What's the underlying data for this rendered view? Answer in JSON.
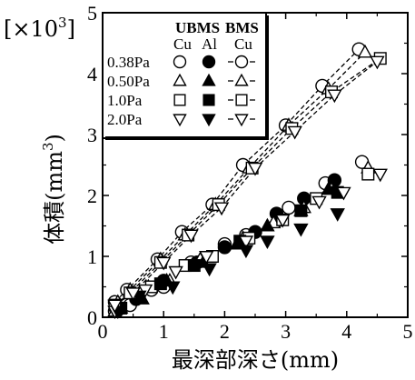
{
  "chart_data": {
    "type": "scatter",
    "multiplier": "[×10",
    "multiplier_exp": "3",
    "multiplier_close": "]",
    "xlabel": "最深部深さ(mm)",
    "ylabel": "体積(mm",
    "ylabel_exp": "3",
    "ylabel_close": ")",
    "xlim": [
      0,
      5
    ],
    "ylim": [
      0,
      5
    ],
    "xticks": [
      "0",
      "1",
      "2",
      "3",
      "4",
      "5"
    ],
    "yticks": [
      "0",
      "1",
      "2",
      "3",
      "4",
      "5"
    ],
    "grid": false,
    "legend_position": "top-left",
    "legend": {
      "header_group": "UBMS",
      "header_group2": "BMS",
      "sub_cu": "Cu",
      "sub_al": "Al",
      "sub_cu2": "Cu",
      "rows": [
        {
          "pressure": "0.38Pa",
          "marker": "circle"
        },
        {
          "pressure": "0.50Pa",
          "marker": "triangle-up"
        },
        {
          "pressure": "1.0Pa",
          "marker": "square"
        },
        {
          "pressure": "2.0Pa",
          "marker": "triangle-down"
        }
      ]
    },
    "series": [
      {
        "name": "0.38Pa UBMS Cu",
        "marker": "circle",
        "fill": "open",
        "line": false,
        "x": [
          0.2,
          0.45,
          0.8,
          1.0,
          1.45,
          2.0,
          2.35,
          2.9,
          3.05,
          3.65,
          4.25
        ],
        "y": [
          0.1,
          0.2,
          0.45,
          0.5,
          0.9,
          1.2,
          1.35,
          1.6,
          1.8,
          2.2,
          2.55
        ]
      },
      {
        "name": "0.38Pa UBMS Al",
        "marker": "circle",
        "fill": "filled",
        "line": false,
        "x": [
          0.25,
          0.55,
          1.0,
          1.55,
          2.0,
          2.5,
          2.85,
          3.3,
          3.8
        ],
        "y": [
          0.12,
          0.3,
          0.6,
          0.9,
          1.15,
          1.4,
          1.7,
          1.95,
          2.25
        ]
      },
      {
        "name": "0.38Pa BMS Cu",
        "marker": "circle",
        "fill": "open",
        "line": true,
        "x": [
          0.2,
          0.4,
          0.9,
          1.3,
          1.8,
          2.3,
          3.0,
          3.6,
          4.2
        ],
        "y": [
          0.25,
          0.45,
          0.95,
          1.4,
          1.85,
          2.5,
          3.15,
          3.8,
          4.4
        ]
      },
      {
        "name": "0.50Pa UBMS Cu",
        "marker": "triangle-up",
        "fill": "open",
        "line": false,
        "x": [
          0.2,
          0.75,
          1.1,
          1.6,
          2.3,
          2.8,
          3.3,
          3.75,
          4.35
        ],
        "y": [
          0.1,
          0.5,
          0.6,
          0.95,
          1.3,
          1.55,
          1.8,
          2.1,
          2.45
        ]
      },
      {
        "name": "0.50Pa UBMS Al",
        "marker": "triangle-up",
        "fill": "filled",
        "line": false,
        "x": [
          0.3,
          0.65,
          1.05,
          1.65,
          2.2,
          2.7,
          3.25,
          3.7
        ],
        "y": [
          0.15,
          0.3,
          0.6,
          0.9,
          1.2,
          1.5,
          1.75,
          2.1
        ]
      },
      {
        "name": "0.50Pa BMS Cu",
        "marker": "triangle-up",
        "fill": "open",
        "line": true,
        "x": [
          0.25,
          0.45,
          0.95,
          1.35,
          1.85,
          2.4,
          3.05,
          3.7,
          4.3
        ],
        "y": [
          0.25,
          0.45,
          0.95,
          1.35,
          1.85,
          2.45,
          3.15,
          3.75,
          4.35
        ]
      },
      {
        "name": "1.0Pa UBMS Cu",
        "marker": "square",
        "fill": "open",
        "line": false,
        "x": [
          0.25,
          0.8,
          1.35,
          1.8,
          2.4,
          2.95,
          3.5,
          4.35
        ],
        "y": [
          0.15,
          0.5,
          0.85,
          1.0,
          1.3,
          1.6,
          1.95,
          2.35
        ]
      },
      {
        "name": "1.0Pa UBMS Al",
        "marker": "square",
        "fill": "filled",
        "line": false,
        "x": [
          0.3,
          0.95,
          1.5,
          2.25,
          3.25,
          3.85
        ],
        "y": [
          0.15,
          0.55,
          0.85,
          1.25,
          1.75,
          2.05
        ]
      },
      {
        "name": "1.0Pa BMS Cu",
        "marker": "square",
        "fill": "open",
        "line": true,
        "x": [
          0.2,
          0.45,
          0.95,
          1.4,
          1.9,
          2.45,
          3.1,
          3.75,
          4.55
        ],
        "y": [
          0.2,
          0.4,
          0.9,
          1.35,
          1.85,
          2.45,
          3.1,
          3.7,
          4.25
        ]
      },
      {
        "name": "2.0Pa UBMS Cu",
        "marker": "triangle-down",
        "fill": "open",
        "line": false,
        "x": [
          0.2,
          0.7,
          1.2,
          1.7,
          2.35,
          2.95,
          3.55,
          3.95,
          4.55
        ],
        "y": [
          0.1,
          0.45,
          0.75,
          1.0,
          1.25,
          1.6,
          1.9,
          2.05,
          2.35
        ]
      },
      {
        "name": "2.0Pa UBMS Al",
        "marker": "triangle-down",
        "fill": "filled",
        "line": false,
        "x": [
          0.25,
          0.6,
          1.15,
          1.75,
          2.35,
          2.7,
          3.25,
          3.85
        ],
        "y": [
          0.1,
          0.35,
          0.5,
          0.8,
          1.1,
          1.25,
          1.45,
          1.7
        ]
      },
      {
        "name": "2.0Pa BMS Cu",
        "marker": "triangle-down",
        "fill": "open",
        "line": true,
        "x": [
          0.2,
          0.5,
          1.0,
          1.45,
          1.95,
          2.5,
          3.15,
          3.8,
          4.5
        ],
        "y": [
          0.2,
          0.4,
          0.9,
          1.35,
          1.8,
          2.45,
          3.05,
          3.65,
          4.2
        ]
      }
    ]
  }
}
